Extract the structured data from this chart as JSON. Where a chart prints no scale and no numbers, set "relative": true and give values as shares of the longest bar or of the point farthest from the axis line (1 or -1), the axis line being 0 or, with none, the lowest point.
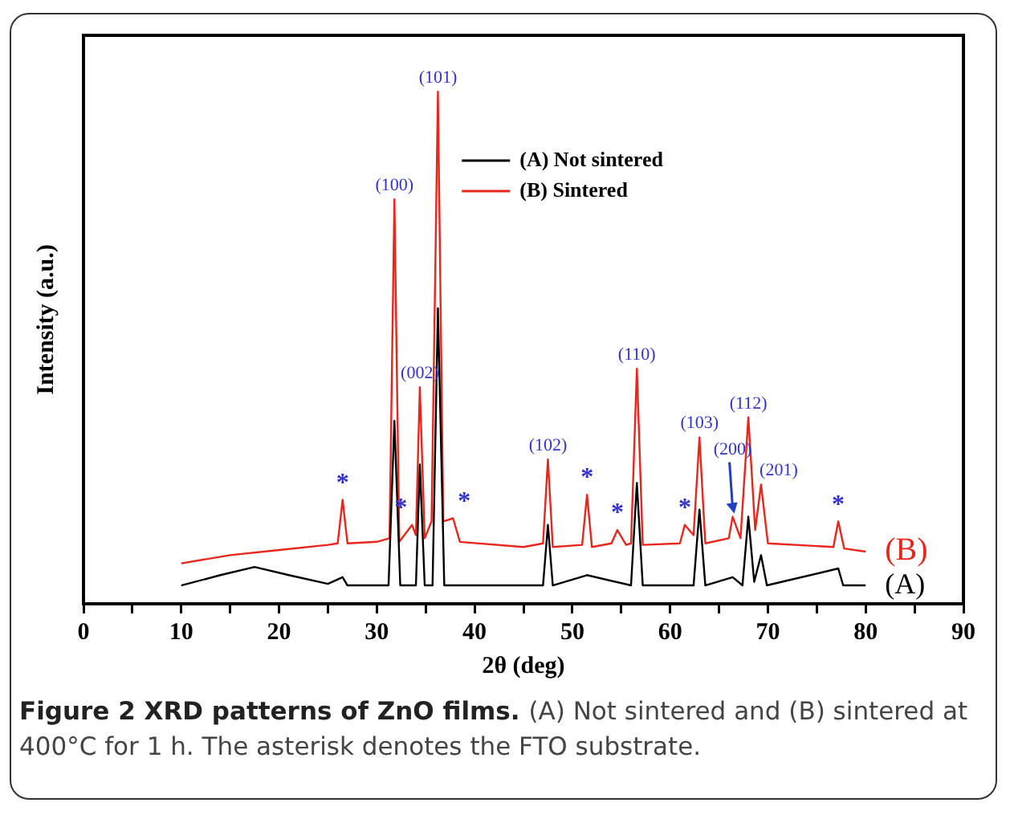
{
  "chart_data": {
    "type": "line",
    "relative": true,
    "xlabel": "2θ (deg)",
    "ylabel": "Intensity (a.u.)",
    "xlim": [
      0,
      90
    ],
    "xticks": [
      0,
      {
        "value": 5,
        "label": null
      },
      10,
      {
        "value": 15,
        "label": null
      },
      20,
      {
        "value": 25,
        "label": null
      },
      30,
      {
        "value": 35,
        "label": null
      },
      40,
      {
        "value": 45,
        "label": null
      },
      50,
      {
        "value": 55,
        "label": null
      },
      60,
      {
        "value": 65,
        "label": null
      },
      70,
      {
        "value": 75,
        "label": null
      },
      80,
      {
        "value": 85,
        "label": null
      },
      90
    ],
    "legend": "top right",
    "grid": false,
    "marker": "none",
    "line_style": "solid",
    "series": [
      {
        "name": "(A) Not sintered",
        "color": "#000000",
        "x": [
          10,
          14,
          17.5,
          21,
          25,
          26.5,
          27,
          31.2,
          31.8,
          32.4,
          34,
          34.4,
          34.9,
          35.7,
          36.25,
          36.9,
          47,
          47.5,
          48,
          51.5,
          56,
          56.6,
          57.2,
          62.4,
          63,
          63.6,
          66.4,
          67.4,
          68,
          68.6,
          69.3,
          69.9,
          77.2,
          77.7,
          80
        ],
        "values": [
          0.036,
          0.056,
          0.072,
          0.056,
          0.039,
          0.052,
          0.036,
          0.036,
          0.357,
          0.036,
          0.036,
          0.272,
          0.036,
          0.036,
          0.577,
          0.036,
          0.036,
          0.154,
          0.036,
          0.056,
          0.036,
          0.236,
          0.036,
          0.036,
          0.184,
          0.036,
          0.052,
          0.036,
          0.17,
          0.043,
          0.095,
          0.036,
          0.069,
          0.036,
          0.036
        ]
      },
      {
        "name": "(B) Sintered",
        "color": "#e8261c",
        "x": [
          10,
          15,
          20,
          25,
          26,
          26.5,
          27,
          30,
          31.3,
          31.8,
          32.3,
          33.6,
          34,
          34.4,
          34.9,
          35.6,
          36.25,
          36.8,
          37.8,
          38.5,
          45,
          47,
          47.5,
          48,
          51,
          51.5,
          52,
          54,
          54.6,
          55.5,
          56,
          56.6,
          57.2,
          61,
          61.5,
          62.4,
          63,
          63.6,
          66,
          66.4,
          67.2,
          68,
          68.7,
          69.3,
          70,
          76.7,
          77.2,
          77.8,
          80
        ],
        "values": [
          0.079,
          0.095,
          0.105,
          0.115,
          0.118,
          0.203,
          0.118,
          0.121,
          0.128,
          0.79,
          0.121,
          0.154,
          0.134,
          0.423,
          0.128,
          0.161,
          1,
          0.161,
          0.167,
          0.121,
          0.111,
          0.118,
          0.282,
          0.111,
          0.115,
          0.213,
          0.111,
          0.118,
          0.144,
          0.115,
          0.118,
          0.459,
          0.115,
          0.118,
          0.154,
          0.134,
          0.325,
          0.118,
          0.128,
          0.17,
          0.128,
          0.364,
          0.144,
          0.233,
          0.118,
          0.111,
          0.161,
          0.108,
          0.102
        ]
      }
    ],
    "annotations": [
      {
        "text": "(100)",
        "x": 31.8,
        "y": 0.79
      },
      {
        "text": "(002)",
        "x": 34.4,
        "y": 0.423
      },
      {
        "text": "(101)",
        "x": 36.25,
        "y": 1
      },
      {
        "text": "(102)",
        "x": 47.5,
        "y": 0.282
      },
      {
        "text": "(110)",
        "x": 56.6,
        "y": 0.459
      },
      {
        "text": "(103)",
        "x": 63,
        "y": 0.325
      },
      {
        "text": "(200)",
        "x": 66.4,
        "y": 0.17
      },
      {
        "text": "(112)",
        "x": 68,
        "y": 0.364
      },
      {
        "text": "(201)",
        "x": 69.3,
        "y": 0.233
      },
      {
        "text": "*",
        "x": 26.5,
        "y": 0.203
      },
      {
        "text": "*",
        "x": 33.6,
        "y": 0.154
      },
      {
        "text": "*",
        "x": 37.8,
        "y": 0.167
      },
      {
        "text": "*",
        "x": 51.5,
        "y": 0.213
      },
      {
        "text": "*",
        "x": 54.6,
        "y": 0.144
      },
      {
        "text": "*",
        "x": 61.5,
        "y": 0.154
      },
      {
        "text": "*",
        "x": 77.2,
        "y": 0.161
      },
      {
        "text": "(B)",
        "x": 80,
        "y": 0.102
      },
      {
        "text": "(A)",
        "x": 80,
        "y": 0.036
      },
      "Figure 2 XRD patterns of ZnO films.",
      "(A) Not sintered and (B) sintered at 400°C for 1 h. The asterisk denotes the FTO substrate."
    ]
  }
}
